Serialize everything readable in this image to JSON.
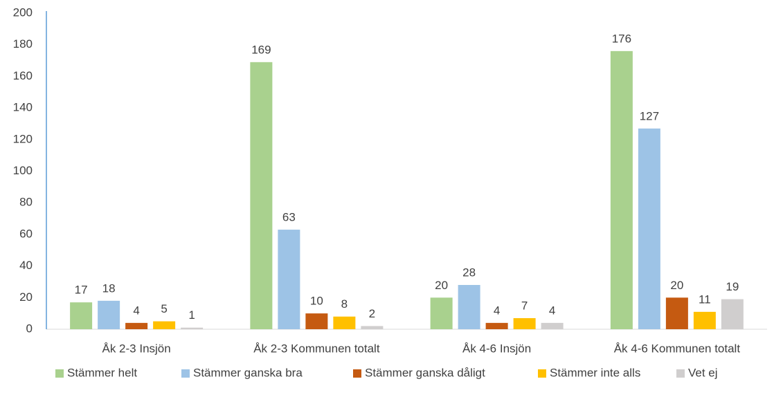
{
  "chart_data": {
    "type": "bar",
    "categories": [
      "Åk 2-3 Insjön",
      "Åk 2-3 Kommunen totalt",
      "Åk 4-6 Insjön",
      "Åk 4-6 Kommunen totalt"
    ],
    "series": [
      {
        "name": "Stämmer helt",
        "color": "#a9d18e",
        "values": [
          17,
          169,
          20,
          176
        ]
      },
      {
        "name": "Stämmer ganska bra",
        "color": "#9dc3e6",
        "values": [
          18,
          63,
          28,
          127
        ]
      },
      {
        "name": "Stämmer ganska dåligt",
        "color": "#c55a11",
        "values": [
          4,
          10,
          4,
          20
        ]
      },
      {
        "name": "Stämmer inte alls",
        "color": "#ffc000",
        "values": [
          5,
          8,
          7,
          11
        ]
      },
      {
        "name": "Vet ej",
        "color": "#d0cece",
        "values": [
          1,
          2,
          4,
          19
        ]
      }
    ],
    "ylim": [
      0,
      200
    ],
    "yticks": [
      0,
      20,
      40,
      60,
      80,
      100,
      120,
      140,
      160,
      180,
      200
    ],
    "grid": false,
    "legend": "bottom"
  }
}
